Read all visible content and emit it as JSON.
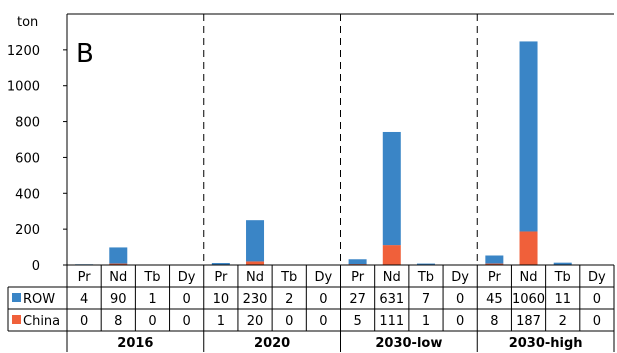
{
  "chart_data": {
    "type": "bar",
    "stacked": true,
    "panel_label": "B",
    "ylabel": "ton",
    "ylim": [
      0,
      1400
    ],
    "yticks": [
      0,
      200,
      400,
      600,
      800,
      1000,
      1200
    ],
    "groups": [
      "2016",
      "2020",
      "2030-low",
      "2030-high"
    ],
    "elements": [
      "Pr",
      "Nd",
      "Tb",
      "Dy"
    ],
    "series": [
      {
        "name": "China",
        "color": "#f0603a",
        "values": [
          [
            0,
            8,
            0,
            0
          ],
          [
            1,
            20,
            0,
            0
          ],
          [
            5,
            111,
            1,
            0
          ],
          [
            8,
            187,
            2,
            0
          ]
        ]
      },
      {
        "name": "ROW",
        "color": "#3a85c6",
        "values": [
          [
            4,
            90,
            1,
            0
          ],
          [
            10,
            230,
            2,
            0
          ],
          [
            27,
            631,
            7,
            0
          ],
          [
            45,
            1060,
            11,
            0
          ]
        ]
      }
    ],
    "table_rows": [
      {
        "label": "ROW",
        "color": "#3a85c6",
        "cells": [
          [
            "4",
            "90",
            "1",
            "0"
          ],
          [
            "10",
            "230",
            "2",
            "0"
          ],
          [
            "27",
            "631",
            "7",
            "0"
          ],
          [
            "45",
            "1060",
            "11",
            "0"
          ]
        ]
      },
      {
        "label": "China",
        "color": "#f0603a",
        "cells": [
          [
            "0",
            "8",
            "0",
            "0"
          ],
          [
            "1",
            "20",
            "0",
            "0"
          ],
          [
            "5",
            "111",
            "1",
            "0"
          ],
          [
            "8",
            "187",
            "2",
            "0"
          ]
        ]
      }
    ]
  }
}
